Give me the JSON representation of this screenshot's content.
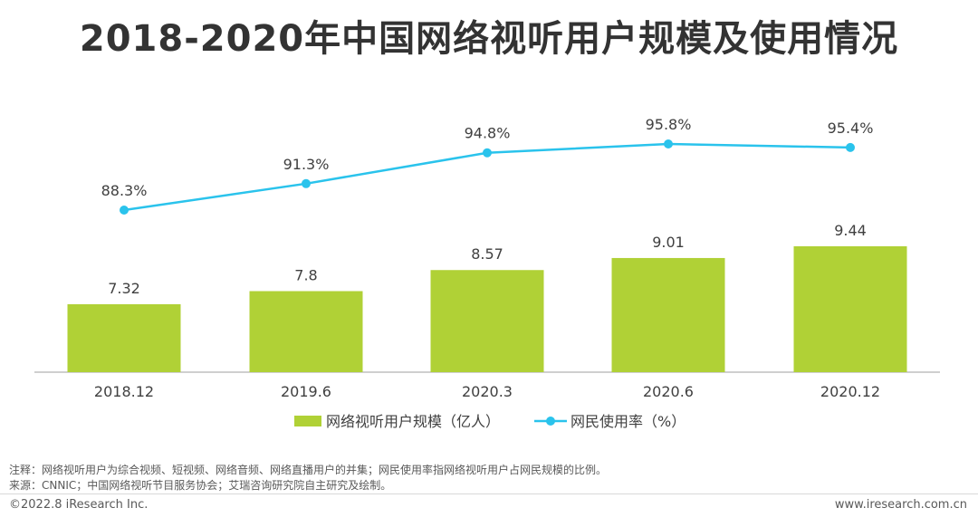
{
  "title": "2018-2020年中国网络视听用户规模及使用情况",
  "chart_data": {
    "type": "bar",
    "categories": [
      "2018.12",
      "2019.6",
      "2020.3",
      "2020.6",
      "2020.12"
    ],
    "series": [
      {
        "name": "网络视听用户规模（亿人）",
        "type": "bar",
        "values": [
          7.32,
          7.8,
          8.57,
          9.01,
          9.44
        ],
        "labels": [
          "7.32",
          "7.8",
          "8.57",
          "9.01",
          "9.44"
        ],
        "color": "#b0d136"
      },
      {
        "name": "网民使用率（%）",
        "type": "line",
        "values": [
          88.3,
          91.3,
          94.8,
          95.8,
          95.4
        ],
        "labels": [
          "88.3%",
          "91.3%",
          "94.8%",
          "95.8%",
          "95.4%"
        ],
        "color": "#2ac3ec"
      }
    ],
    "legend_position": "bottom",
    "grid": false
  },
  "notes": {
    "note": "注释：网络视听用户为综合视频、短视频、网络音频、网络直播用户的并集；网民使用率指网络视听用户占网民规模的比例。",
    "source": "来源：CNNIC；中国网络视听节目服务协会；艾瑞咨询研究院自主研究及绘制。"
  },
  "footer": {
    "copyright": "©2022.8 iResearch Inc.",
    "website": "www.iresearch.com.cn"
  }
}
